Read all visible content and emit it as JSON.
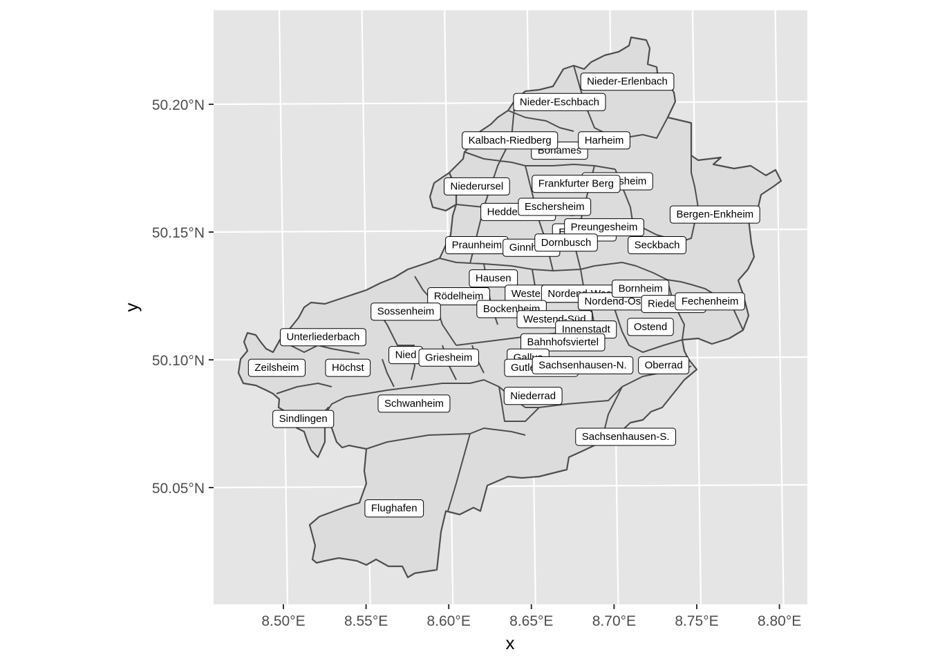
{
  "map": {
    "xlabel": "x",
    "ylabel": "y",
    "x_ticks": [
      {
        "value": 8.5,
        "label": "8.50°E"
      },
      {
        "value": 8.55,
        "label": "8.55°E"
      },
      {
        "value": 8.6,
        "label": "8.60°E"
      },
      {
        "value": 8.65,
        "label": "8.65°E"
      },
      {
        "value": 8.7,
        "label": "8.70°E"
      },
      {
        "value": 8.75,
        "label": "8.75°E"
      },
      {
        "value": 8.8,
        "label": "8.80°E"
      }
    ],
    "y_ticks": [
      {
        "value": 50.2,
        "label": "50.20°N"
      },
      {
        "value": 50.15,
        "label": "50.15°N"
      },
      {
        "value": 50.1,
        "label": "50.10°N"
      },
      {
        "value": 50.05,
        "label": "50.05°N"
      }
    ],
    "colors": {
      "panel": "#e5e5e5",
      "grid": "#ffffff",
      "district_fill": "#dcdcdc",
      "district_border": "#4d4d4d",
      "label_fill": "#ffffff"
    },
    "districts": [
      {
        "name": "Nieder-Erlenbach",
        "lon": 8.708,
        "lat": 50.209
      },
      {
        "name": "Nieder-Eschbach",
        "lon": 8.667,
        "lat": 50.201
      },
      {
        "name": "Bonames",
        "lon": 8.667,
        "lat": 50.182
      },
      {
        "name": "Kalbach-Riedberg",
        "lon": 8.637,
        "lat": 50.186
      },
      {
        "name": "Harheim",
        "lon": 8.694,
        "lat": 50.186
      },
      {
        "name": "Berkersheim",
        "lon": 8.702,
        "lat": 50.17
      },
      {
        "name": "Niederursel",
        "lon": 8.617,
        "lat": 50.168
      },
      {
        "name": "Frankfurter Berg",
        "lon": 8.677,
        "lat": 50.169
      },
      {
        "name": "Heddernheim",
        "lon": 8.642,
        "lat": 50.158
      },
      {
        "name": "Eschersheim",
        "lon": 8.664,
        "lat": 50.16
      },
      {
        "name": "Bergen-Enkheim",
        "lon": 8.761,
        "lat": 50.157
      },
      {
        "name": "Eckenheim",
        "lon": 8.682,
        "lat": 50.15
      },
      {
        "name": "Preungesheim",
        "lon": 8.694,
        "lat": 50.152
      },
      {
        "name": "Praunheim",
        "lon": 8.617,
        "lat": 50.145
      },
      {
        "name": "Ginnheim",
        "lon": 8.65,
        "lat": 50.144
      },
      {
        "name": "Dornbusch",
        "lon": 8.671,
        "lat": 50.146
      },
      {
        "name": "Seckbach",
        "lon": 8.726,
        "lat": 50.145
      },
      {
        "name": "Hausen",
        "lon": 8.627,
        "lat": 50.132
      },
      {
        "name": "Rödelheim",
        "lon": 8.606,
        "lat": 50.125
      },
      {
        "name": "Westend-Nord",
        "lon": 8.658,
        "lat": 50.126
      },
      {
        "name": "Nordend-West",
        "lon": 8.68,
        "lat": 50.126
      },
      {
        "name": "Nordend-Ost",
        "lon": 8.7,
        "lat": 50.123
      },
      {
        "name": "Bornheim",
        "lon": 8.716,
        "lat": 50.128
      },
      {
        "name": "Riederwald",
        "lon": 8.736,
        "lat": 50.122
      },
      {
        "name": "Fechenheim",
        "lon": 8.758,
        "lat": 50.123
      },
      {
        "name": "Sossenheim",
        "lon": 8.574,
        "lat": 50.119
      },
      {
        "name": "Bockenheim",
        "lon": 8.638,
        "lat": 50.12
      },
      {
        "name": "Westend-Süd",
        "lon": 8.664,
        "lat": 50.116
      },
      {
        "name": "Ostend",
        "lon": 8.722,
        "lat": 50.113
      },
      {
        "name": "Innenstadt",
        "lon": 8.683,
        "lat": 50.112
      },
      {
        "name": "Unterliederbach",
        "lon": 8.524,
        "lat": 50.109
      },
      {
        "name": "Bahnhofsviertel",
        "lon": 8.669,
        "lat": 50.107
      },
      {
        "name": "Nied",
        "lon": 8.574,
        "lat": 50.102
      },
      {
        "name": "Griesheim",
        "lon": 8.6,
        "lat": 50.101
      },
      {
        "name": "Gallus",
        "lon": 8.648,
        "lat": 50.101
      },
      {
        "name": "Zeilsheim",
        "lon": 8.496,
        "lat": 50.097
      },
      {
        "name": "Höchst",
        "lon": 8.539,
        "lat": 50.097
      },
      {
        "name": "Gutleutviertel",
        "lon": 8.656,
        "lat": 50.097
      },
      {
        "name": "Sachsenhausen-N.",
        "lon": 8.681,
        "lat": 50.098
      },
      {
        "name": "Oberrad",
        "lon": 8.73,
        "lat": 50.098
      },
      {
        "name": "Niederrad",
        "lon": 8.651,
        "lat": 50.086
      },
      {
        "name": "Schwanheim",
        "lon": 8.579,
        "lat": 50.083
      },
      {
        "name": "Sindlingen",
        "lon": 8.512,
        "lat": 50.077
      },
      {
        "name": "Sachsenhausen-S.",
        "lon": 8.707,
        "lat": 50.07
      },
      {
        "name": "Flughafen",
        "lon": 8.567,
        "lat": 50.042
      }
    ]
  }
}
